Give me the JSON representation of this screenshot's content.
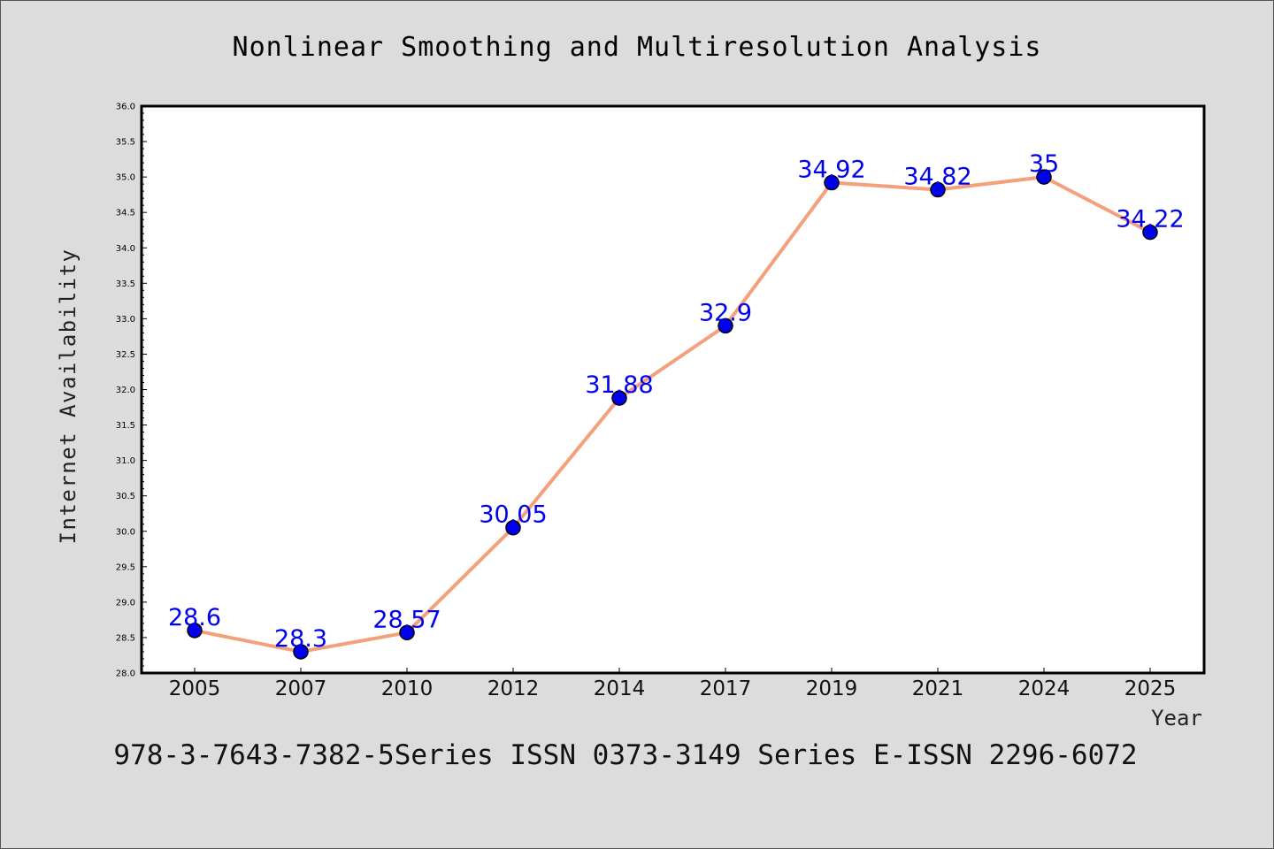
{
  "chart_data": {
    "type": "line",
    "title": "Nonlinear Smoothing and Multiresolution Analysis",
    "xlabel": "Year",
    "ylabel": "Internet Availability",
    "footer": "978-3-7643-7382-5Series ISSN 0373-3149 Series E-ISSN 2296-6072",
    "categories": [
      "2005",
      "2007",
      "2010",
      "2012",
      "2014",
      "2017",
      "2019",
      "2021",
      "2024",
      "2025"
    ],
    "values": [
      28.6,
      28.3,
      28.57,
      30.05,
      31.88,
      32.9,
      34.92,
      34.82,
      35,
      34.22
    ],
    "data_labels": [
      "28.6",
      "28.3",
      "28.57",
      "30.05",
      "31.88",
      "32.9",
      "34.92",
      "34.82",
      "35",
      "34.22"
    ],
    "ylim": [
      28.0,
      36.0
    ],
    "yticks": [
      "28.0",
      "28.5",
      "29.0",
      "29.5",
      "30.0",
      "30.5",
      "31.0",
      "31.5",
      "32.0",
      "32.5",
      "33.0",
      "33.5",
      "34.0",
      "34.5",
      "35.0",
      "35.5",
      "36.0"
    ],
    "grid": false,
    "colors": {
      "line": "#f4a07c",
      "marker": "#0000ee",
      "label": "#0000ee",
      "background": "#dcdcdc",
      "plot_background": "#ffffff"
    }
  }
}
